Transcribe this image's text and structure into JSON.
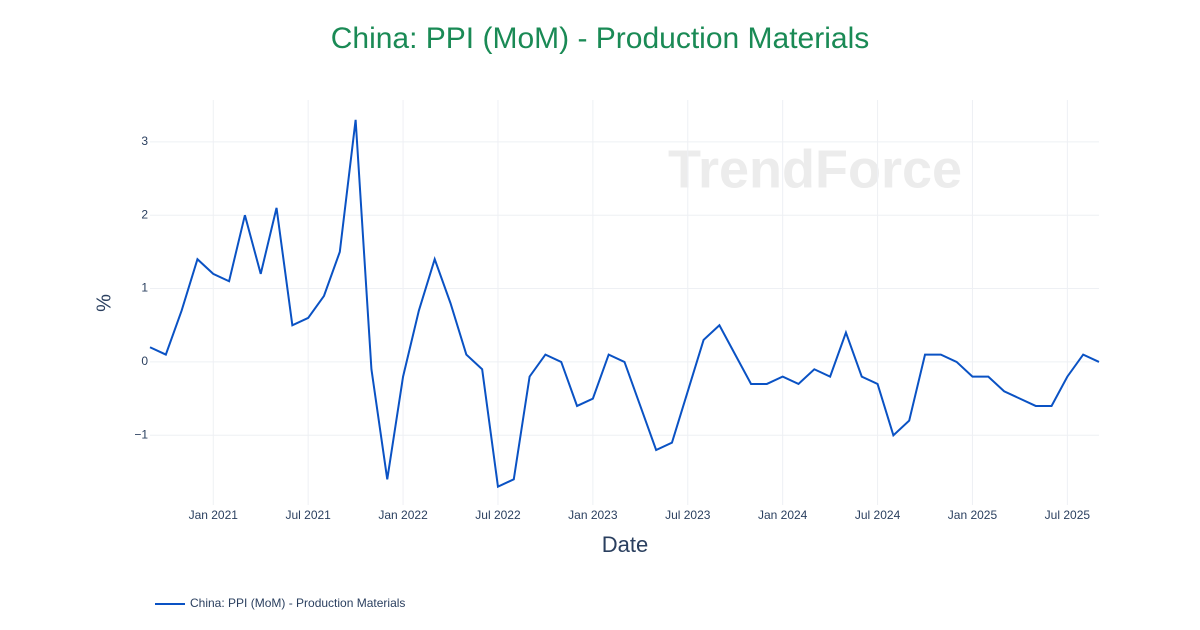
{
  "chart_data": {
    "type": "line",
    "title": "China: PPI (MoM) - Production Materials",
    "watermark": "TrendForce",
    "xlabel": "Date",
    "ylabel": "%",
    "x": [
      "2020-09",
      "2020-10",
      "2020-11",
      "2020-12",
      "2021-01",
      "2021-02",
      "2021-03",
      "2021-04",
      "2021-05",
      "2021-06",
      "2021-07",
      "2021-08",
      "2021-09",
      "2021-10",
      "2021-11",
      "2021-12",
      "2022-01",
      "2022-02",
      "2022-03",
      "2022-04",
      "2022-05",
      "2022-06",
      "2022-07",
      "2022-08",
      "2022-09",
      "2022-10",
      "2022-11",
      "2022-12",
      "2023-01",
      "2023-02",
      "2023-03",
      "2023-04",
      "2023-05",
      "2023-06",
      "2023-07",
      "2023-08",
      "2023-09",
      "2023-10",
      "2023-11",
      "2023-12",
      "2024-01",
      "2024-02",
      "2024-03",
      "2024-04",
      "2024-05",
      "2024-06",
      "2024-07",
      "2024-08",
      "2024-09",
      "2024-10",
      "2024-11",
      "2024-12",
      "2025-01",
      "2025-02",
      "2025-03",
      "2025-04",
      "2025-05",
      "2025-06",
      "2025-07",
      "2025-08",
      "2025-09"
    ],
    "series": [
      {
        "name": "China: PPI (MoM) - Production Materials",
        "color": "#0a52c4",
        "values": [
          0.2,
          0.1,
          0.7,
          1.4,
          1.2,
          1.1,
          2.0,
          1.2,
          2.1,
          0.5,
          0.6,
          0.9,
          1.5,
          3.3,
          -0.1,
          -1.6,
          -0.2,
          0.7,
          1.4,
          0.8,
          0.1,
          -0.1,
          -1.7,
          -1.6,
          -0.2,
          0.1,
          0.0,
          -0.6,
          -0.5,
          0.1,
          0.0,
          -0.6,
          -1.2,
          -1.1,
          -0.4,
          0.3,
          0.5,
          0.1,
          -0.3,
          -0.3,
          -0.2,
          -0.3,
          -0.1,
          -0.2,
          0.4,
          -0.2,
          -0.3,
          -1.0,
          -0.8,
          0.1,
          0.1,
          0.0,
          -0.2,
          -0.2,
          -0.4,
          -0.5,
          -0.6,
          -0.6,
          -0.2,
          0.1,
          0.0
        ]
      }
    ],
    "xlim": [
      "2020-09",
      "2025-09"
    ],
    "xticks": [
      {
        "value": "2021-01",
        "label": "Jan 2021"
      },
      {
        "value": "2021-07",
        "label": "Jul 2021"
      },
      {
        "value": "2022-01",
        "label": "Jan 2022"
      },
      {
        "value": "2022-07",
        "label": "Jul 2022"
      },
      {
        "value": "2023-01",
        "label": "Jan 2023"
      },
      {
        "value": "2023-07",
        "label": "Jul 2023"
      },
      {
        "value": "2024-01",
        "label": "Jan 2024"
      },
      {
        "value": "2024-07",
        "label": "Jul 2024"
      },
      {
        "value": "2025-01",
        "label": "Jan 2025"
      },
      {
        "value": "2025-07",
        "label": "Jul 2025"
      }
    ],
    "ylim": [
      -1.95,
      3.57
    ],
    "yticks": [
      {
        "value": -1,
        "label": "−1"
      },
      0,
      1,
      2,
      3
    ],
    "grid": true,
    "legend": "bottom-left"
  }
}
